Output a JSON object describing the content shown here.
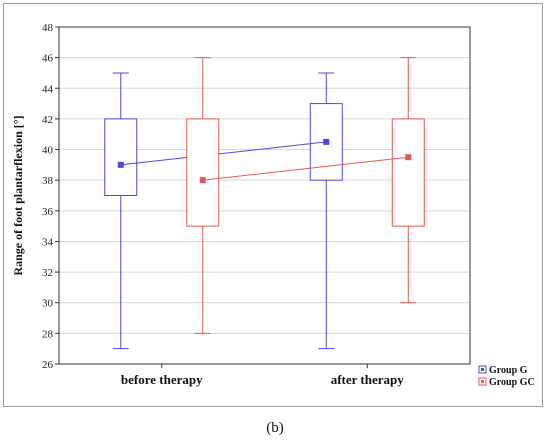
{
  "caption": "(b)",
  "chart_data": {
    "type": "box",
    "categories": [
      "before therapy",
      "after therapy"
    ],
    "ylabel": "Range of foot plantarflexion [°]",
    "xlabel": "",
    "ylim": [
      26,
      48
    ],
    "yticks": [
      26,
      28,
      30,
      32,
      34,
      36,
      38,
      40,
      42,
      44,
      46,
      48
    ],
    "grid": true,
    "legend_position": "bottom-right",
    "series": [
      {
        "name": "Group G",
        "color": "#4a4adc",
        "boxes": [
          {
            "min": 27,
            "q1": 37,
            "q3": 42,
            "max": 45,
            "mean": 39
          },
          {
            "min": 27,
            "q1": 38,
            "q3": 43,
            "max": 45,
            "mean": 40.5
          }
        ]
      },
      {
        "name": "Group GC",
        "color": "#e05858",
        "boxes": [
          {
            "min": 28,
            "q1": 35,
            "q3": 42,
            "max": 46,
            "mean": 38
          },
          {
            "min": 30,
            "q1": 35,
            "q3": 42,
            "max": 46,
            "mean": 39.5
          }
        ]
      }
    ]
  }
}
